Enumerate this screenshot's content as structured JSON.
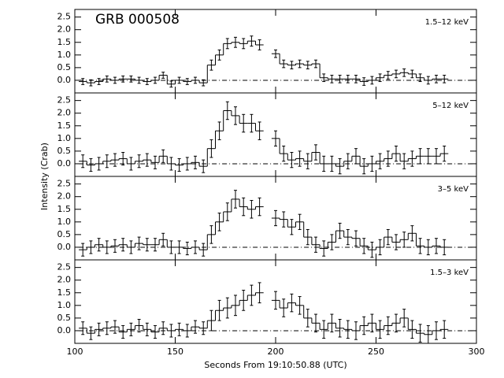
{
  "xlabel": "Seconds From 19:10:50.88 (UTC)",
  "ylabel": "Intensity (Crab)",
  "chart_data": [
    {
      "type": "histogram",
      "title": "GRB 000508",
      "label": "1.5–12 keV",
      "hline": 0,
      "bins": [
        102,
        106,
        110,
        114,
        118,
        122,
        126,
        130,
        134,
        138,
        142,
        146,
        150,
        154,
        158,
        162,
        166,
        170,
        174,
        178,
        182,
        186,
        190,
        194,
        198,
        202,
        206,
        210,
        214,
        218,
        222,
        226,
        230,
        234,
        238,
        242,
        246,
        250,
        254,
        258,
        262,
        266,
        270,
        274,
        278,
        282,
        286
      ],
      "values": [
        -0.05,
        -0.1,
        -0.05,
        0.05,
        0.0,
        0.05,
        0.05,
        0.0,
        -0.05,
        0.0,
        0.2,
        -0.15,
        0.0,
        -0.05,
        0.0,
        -0.1,
        0.6,
        1.0,
        1.45,
        1.5,
        1.45,
        1.55,
        1.4,
        null,
        1.05,
        0.65,
        0.6,
        0.65,
        0.6,
        0.65,
        0.1,
        0.05,
        0.05,
        0.05,
        0.05,
        -0.05,
        0.0,
        0.1,
        0.2,
        0.25,
        0.3,
        0.25,
        0.1,
        0.0,
        0.05,
        0.05
      ],
      "errors": [
        0.12,
        0.12,
        0.12,
        0.12,
        0.12,
        0.12,
        0.12,
        0.12,
        0.12,
        0.12,
        0.12,
        0.12,
        0.12,
        0.12,
        0.12,
        0.12,
        0.2,
        0.2,
        0.2,
        0.2,
        0.2,
        0.2,
        0.2,
        null,
        0.15,
        0.15,
        0.15,
        0.15,
        0.15,
        0.15,
        0.15,
        0.15,
        0.15,
        0.15,
        0.15,
        0.15,
        0.15,
        0.15,
        0.15,
        0.15,
        0.15,
        0.15,
        0.15,
        0.15,
        0.15,
        0.15
      ],
      "xlim": [
        100,
        300
      ],
      "xticks": [
        100,
        150,
        200,
        250,
        300
      ],
      "ylim": [
        -0.5,
        2.8
      ],
      "yticks": [
        {
          "value": 0,
          "label": "0.0"
        },
        {
          "value": 0.5,
          "label": "0.5"
        },
        {
          "value": 1,
          "label": "1.0"
        },
        {
          "value": 1.5,
          "label": "1.5"
        },
        {
          "value": 2,
          "label": "2.0"
        },
        {
          "value": 2.5,
          "label": "2.5"
        }
      ]
    },
    {
      "type": "histogram",
      "label": "5–12 keV",
      "hline": 0,
      "bins": [
        102,
        106,
        110,
        114,
        118,
        122,
        126,
        130,
        134,
        138,
        142,
        146,
        150,
        154,
        158,
        162,
        166,
        170,
        174,
        178,
        182,
        186,
        190,
        194,
        198,
        202,
        206,
        210,
        214,
        218,
        222,
        226,
        230,
        234,
        238,
        242,
        246,
        250,
        254,
        258,
        262,
        266,
        270,
        274,
        278,
        282,
        286
      ],
      "values": [
        0.1,
        -0.05,
        0.0,
        0.1,
        0.15,
        0.2,
        0.0,
        0.1,
        0.15,
        0.05,
        0.3,
        0.0,
        -0.05,
        0.0,
        0.05,
        -0.1,
        0.6,
        1.3,
        2.1,
        1.9,
        1.6,
        1.6,
        1.3,
        null,
        1.0,
        0.4,
        0.15,
        0.2,
        0.1,
        0.45,
        0.0,
        0.0,
        -0.1,
        0.1,
        0.3,
        -0.1,
        0.0,
        0.1,
        0.2,
        0.4,
        0.1,
        0.2,
        0.3,
        0.3,
        0.3,
        0.4
      ],
      "errors": [
        0.25,
        0.25,
        0.25,
        0.25,
        0.25,
        0.25,
        0.25,
        0.25,
        0.25,
        0.25,
        0.25,
        0.25,
        0.25,
        0.25,
        0.25,
        0.25,
        0.35,
        0.35,
        0.35,
        0.35,
        0.35,
        0.35,
        0.35,
        null,
        0.3,
        0.3,
        0.3,
        0.3,
        0.3,
        0.3,
        0.3,
        0.3,
        0.3,
        0.3,
        0.3,
        0.3,
        0.3,
        0.3,
        0.3,
        0.3,
        0.3,
        0.3,
        0.3,
        0.3,
        0.3,
        0.3
      ],
      "xlim": [
        100,
        300
      ],
      "xticks": [
        100,
        150,
        200,
        250,
        300
      ],
      "ylim": [
        -0.5,
        2.8
      ],
      "yticks": [
        {
          "value": 0,
          "label": "0.0"
        },
        {
          "value": 0.5,
          "label": "0.5"
        },
        {
          "value": 1,
          "label": "1.0"
        },
        {
          "value": 1.5,
          "label": "1.5"
        },
        {
          "value": 2,
          "label": "2.0"
        },
        {
          "value": 2.5,
          "label": "2.5"
        }
      ]
    },
    {
      "type": "histogram",
      "label": "3–5 keV",
      "hline": 0,
      "bins": [
        102,
        106,
        110,
        114,
        118,
        122,
        126,
        130,
        134,
        138,
        142,
        146,
        150,
        154,
        158,
        162,
        166,
        170,
        174,
        178,
        182,
        186,
        190,
        194,
        198,
        202,
        206,
        210,
        214,
        218,
        222,
        226,
        230,
        234,
        238,
        242,
        246,
        250,
        254,
        258,
        262,
        266,
        270,
        274,
        278,
        282,
        286
      ],
      "values": [
        -0.1,
        0.0,
        0.1,
        0.0,
        0.05,
        0.1,
        0.0,
        0.15,
        0.1,
        0.1,
        0.3,
        0.0,
        0.0,
        -0.05,
        0.0,
        -0.1,
        0.5,
        1.0,
        1.4,
        1.9,
        1.6,
        1.5,
        1.6,
        null,
        1.15,
        1.1,
        0.8,
        1.0,
        0.4,
        0.1,
        -0.05,
        0.2,
        0.65,
        0.4,
        0.35,
        0.05,
        -0.1,
        0.0,
        0.4,
        0.2,
        0.3,
        0.55,
        0.05,
        0.0,
        0.05,
        0.0
      ],
      "errors": [
        0.25,
        0.25,
        0.25,
        0.25,
        0.25,
        0.25,
        0.25,
        0.25,
        0.25,
        0.25,
        0.25,
        0.25,
        0.25,
        0.25,
        0.25,
        0.25,
        0.35,
        0.35,
        0.35,
        0.35,
        0.35,
        0.35,
        0.35,
        null,
        0.3,
        0.3,
        0.3,
        0.3,
        0.3,
        0.3,
        0.3,
        0.3,
        0.3,
        0.3,
        0.3,
        0.3,
        0.3,
        0.3,
        0.3,
        0.3,
        0.3,
        0.3,
        0.3,
        0.3,
        0.3,
        0.3
      ],
      "xlim": [
        100,
        300
      ],
      "xticks": [
        100,
        150,
        200,
        250,
        300
      ],
      "ylim": [
        -0.5,
        2.8
      ],
      "yticks": [
        {
          "value": 0,
          "label": "0.0"
        },
        {
          "value": 0.5,
          "label": "0.5"
        },
        {
          "value": 1,
          "label": "1.0"
        },
        {
          "value": 1.5,
          "label": "1.5"
        },
        {
          "value": 2,
          "label": "2.0"
        },
        {
          "value": 2.5,
          "label": "2.5"
        }
      ]
    },
    {
      "type": "histogram",
      "label": "1.5–3 keV",
      "hline": 0,
      "bins": [
        102,
        106,
        110,
        114,
        118,
        122,
        126,
        130,
        134,
        138,
        142,
        146,
        150,
        154,
        158,
        162,
        166,
        170,
        174,
        178,
        182,
        186,
        190,
        194,
        198,
        202,
        206,
        210,
        214,
        218,
        222,
        226,
        230,
        234,
        238,
        242,
        246,
        250,
        254,
        258,
        262,
        266,
        270,
        274,
        278,
        282,
        286
      ],
      "values": [
        0.1,
        -0.1,
        0.05,
        0.1,
        0.15,
        -0.05,
        0.05,
        0.2,
        0.05,
        -0.05,
        0.1,
        0.0,
        0.05,
        0.0,
        0.15,
        0.1,
        0.4,
        0.8,
        0.9,
        1.0,
        1.2,
        1.4,
        1.5,
        null,
        1.2,
        0.9,
        1.1,
        1.0,
        0.5,
        0.3,
        0.05,
        0.3,
        0.1,
        0.05,
        0.0,
        0.2,
        0.3,
        0.05,
        0.2,
        0.3,
        0.5,
        0.05,
        -0.1,
        -0.15,
        0.0,
        0.05
      ],
      "errors": [
        0.25,
        0.25,
        0.25,
        0.25,
        0.25,
        0.25,
        0.25,
        0.25,
        0.25,
        0.25,
        0.25,
        0.25,
        0.25,
        0.25,
        0.25,
        0.25,
        0.4,
        0.4,
        0.4,
        0.4,
        0.4,
        0.4,
        0.4,
        null,
        0.35,
        0.35,
        0.35,
        0.35,
        0.35,
        0.35,
        0.35,
        0.35,
        0.35,
        0.35,
        0.35,
        0.35,
        0.35,
        0.35,
        0.35,
        0.35,
        0.35,
        0.35,
        0.35,
        0.35,
        0.35,
        0.35
      ],
      "xlim": [
        100,
        300
      ],
      "xticks": [
        100,
        150,
        200,
        250,
        300
      ],
      "ylim": [
        -0.5,
        2.8
      ],
      "yticks": [
        {
          "value": 0,
          "label": "0.0"
        },
        {
          "value": 0.5,
          "label": "0.5"
        },
        {
          "value": 1,
          "label": "1.0"
        },
        {
          "value": 1.5,
          "label": "1.5"
        },
        {
          "value": 2,
          "label": "2.0"
        },
        {
          "value": 2.5,
          "label": "2.5"
        }
      ]
    }
  ]
}
